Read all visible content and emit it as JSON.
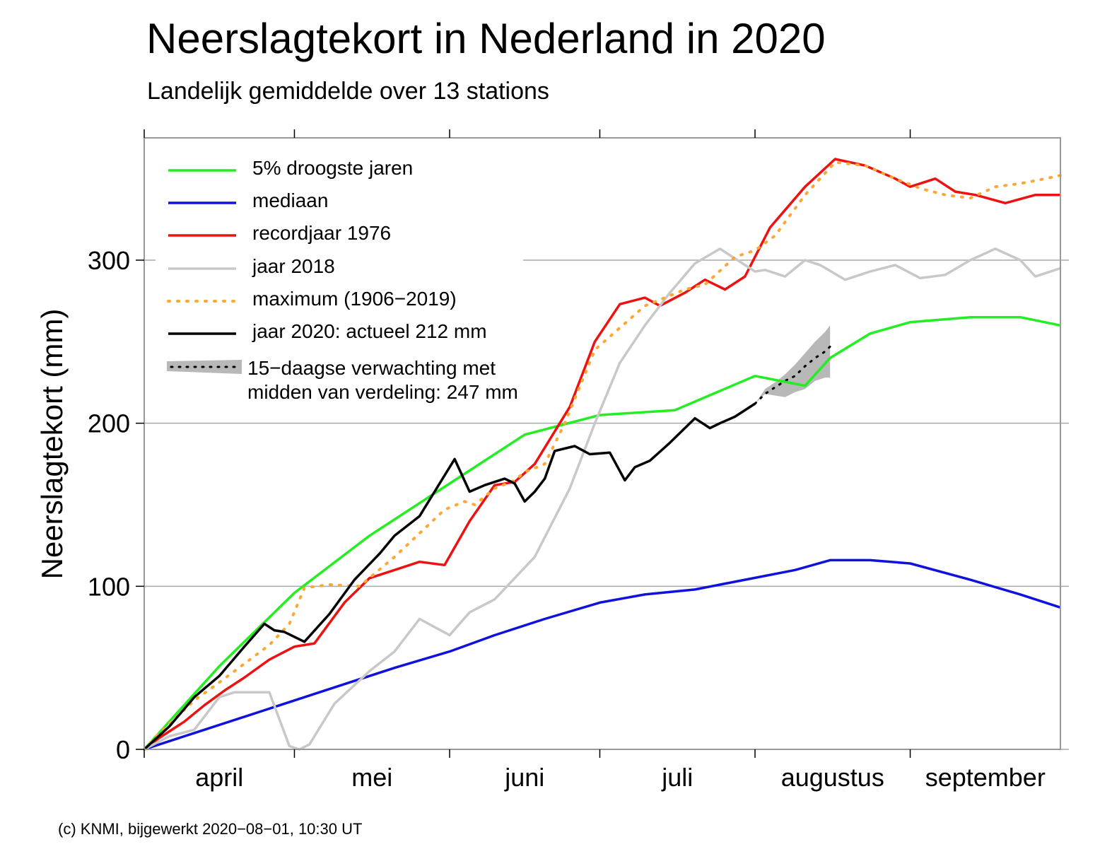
{
  "title": "Neerslagtekort in Nederland in 2020",
  "subtitle": "Landelijk gemiddelde over 13 stations",
  "credit": "(c) KNMI, bijgewerkt 2020−08−01, 10:30 UT",
  "colors": {
    "droogste": "#22ee22",
    "mediaan": "#1111dd",
    "record": "#ee1111",
    "jaar2018": "#c8c8c8",
    "maximum": "#ffa733",
    "jaar2020": "#000000",
    "band": "#b8b8b8",
    "grid": "#aaaaaa"
  },
  "chart_data": {
    "type": "line",
    "xlabel": "",
    "ylabel": "Neerslagtekort (mm)",
    "ylim": [
      0,
      375
    ],
    "yticks": [
      0,
      100,
      200,
      300
    ],
    "xlim": [
      0,
      183
    ],
    "month_starts": [
      0,
      30,
      61,
      91,
      122,
      153
    ],
    "month_labels": [
      "april",
      "mei",
      "juni",
      "juli",
      "augustus",
      "september"
    ],
    "grid": "horizontal",
    "legend_position": "top-left",
    "series": [
      {
        "key": "droogste",
        "name": "5% droogste jaren",
        "style": "solid",
        "x": [
          0,
          15,
          30,
          45,
          61,
          76,
          91,
          106,
          122,
          132,
          137,
          145,
          153,
          165,
          175,
          183
        ],
        "y": [
          0,
          51,
          96,
          131,
          163,
          193,
          205,
          208,
          229,
          223,
          240,
          255,
          262,
          265,
          265,
          260
        ]
      },
      {
        "key": "mediaan",
        "name": "mediaan",
        "style": "solid",
        "x": [
          0,
          10,
          20,
          30,
          40,
          50,
          61,
          70,
          80,
          91,
          100,
          110,
          120,
          130,
          137,
          145,
          153,
          165,
          175,
          183
        ],
        "y": [
          0,
          10,
          20,
          30,
          40,
          50,
          60,
          70,
          80,
          90,
          95,
          98,
          104,
          110,
          116,
          116,
          114,
          104,
          95,
          87
        ]
      },
      {
        "key": "record",
        "name": "recordjaar 1976",
        "style": "solid",
        "x": [
          0,
          3,
          8,
          12,
          16,
          20,
          25,
          30,
          34,
          40,
          45,
          50,
          55,
          60,
          65,
          70,
          74,
          78,
          85,
          90,
          95,
          100,
          103,
          108,
          112,
          116,
          120,
          125,
          132,
          138,
          144,
          150,
          153,
          158,
          162,
          166,
          172,
          178,
          183
        ],
        "y": [
          0,
          7,
          17,
          27,
          36,
          44,
          55,
          63,
          65,
          90,
          105,
          110,
          115,
          113,
          140,
          162,
          164,
          175,
          210,
          250,
          273,
          277,
          272,
          280,
          288,
          282,
          290,
          320,
          345,
          362,
          358,
          350,
          345,
          350,
          342,
          340,
          335,
          340,
          340
        ]
      },
      {
        "key": "jaar2018",
        "name": "jaar 2018",
        "style": "solid",
        "x": [
          0,
          5,
          10,
          15,
          18,
          25,
          29,
          31,
          33,
          38,
          45,
          50,
          55,
          61,
          65,
          70,
          78,
          85,
          90,
          95,
          100,
          105,
          110,
          115,
          122,
          124,
          128,
          132,
          135,
          140,
          145,
          150,
          155,
          160,
          165,
          170,
          175,
          178,
          183
        ],
        "y": [
          0,
          8,
          12,
          32,
          35,
          35,
          2,
          0,
          3,
          28,
          48,
          60,
          80,
          70,
          84,
          92,
          118,
          160,
          200,
          237,
          260,
          280,
          298,
          307,
          293,
          294,
          290,
          300,
          297,
          288,
          293,
          297,
          289,
          291,
          300,
          307,
          300,
          290,
          295
        ]
      },
      {
        "key": "maximum",
        "name": "maximum (1906−2019)",
        "style": "dotted",
        "x": [
          0,
          3,
          10,
          15,
          25,
          29,
          32,
          37,
          43,
          50,
          60,
          64,
          66,
          70,
          74,
          76,
          80,
          84,
          90,
          100,
          108,
          112,
          118,
          122,
          126,
          132,
          138,
          144,
          150,
          155,
          160,
          165,
          170,
          175,
          180,
          183
        ],
        "y": [
          0,
          10,
          30,
          41,
          64,
          77,
          99,
          101,
          100,
          118,
          147,
          152,
          150,
          160,
          165,
          170,
          175,
          200,
          245,
          272,
          282,
          285,
          302,
          306,
          315,
          340,
          360,
          358,
          350,
          344,
          340,
          338,
          345,
          347,
          350,
          352
        ]
      },
      {
        "key": "jaar2020",
        "name": "jaar 2020: actueel 212 mm",
        "style": "solid",
        "x": [
          0,
          5,
          10,
          15,
          20,
          24,
          26,
          28,
          32,
          37,
          42,
          47,
          50,
          55,
          62,
          65,
          68,
          72,
          74,
          76,
          78,
          80,
          82,
          86,
          89,
          93,
          96,
          98,
          101,
          105,
          110,
          113,
          115,
          118,
          122
        ],
        "y": [
          0,
          14,
          32,
          45,
          63,
          77,
          73,
          72,
          66,
          83,
          104,
          120,
          131,
          143,
          178,
          158,
          162,
          166,
          163,
          152,
          158,
          166,
          183,
          186,
          181,
          182,
          165,
          173,
          177,
          188,
          203,
          197,
          200,
          204,
          212
        ]
      }
    ],
    "forecast": {
      "name": "15−daagse verwachting met",
      "name_line2": "midden van verdeling: 247 mm",
      "x": [
        122,
        124,
        126,
        128,
        130,
        132,
        134,
        136,
        137
      ],
      "median": [
        212,
        218,
        222,
        226,
        229,
        235,
        240,
        244,
        247
      ],
      "low": [
        212,
        218,
        217,
        216,
        219,
        221,
        226,
        228,
        228
      ],
      "high": [
        212,
        221,
        225,
        230,
        236,
        243,
        250,
        256,
        260
      ]
    }
  }
}
